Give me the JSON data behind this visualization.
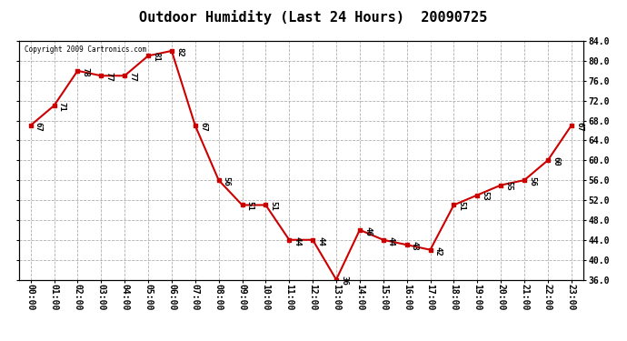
{
  "title": "Outdoor Humidity (Last 24 Hours)  20090725",
  "copyright": "Copyright 2009 Cartronics.com",
  "hours": [
    "00:00",
    "01:00",
    "02:00",
    "03:00",
    "04:00",
    "05:00",
    "06:00",
    "07:00",
    "08:00",
    "09:00",
    "10:00",
    "11:00",
    "12:00",
    "13:00",
    "14:00",
    "15:00",
    "16:00",
    "17:00",
    "18:00",
    "19:00",
    "20:00",
    "21:00",
    "22:00",
    "23:00"
  ],
  "values": [
    67,
    71,
    78,
    77,
    77,
    81,
    82,
    67,
    56,
    51,
    51,
    44,
    44,
    36,
    46,
    44,
    43,
    42,
    51,
    53,
    55,
    56,
    60,
    67
  ],
  "ylim": [
    36.0,
    84.0
  ],
  "yticks": [
    36.0,
    40.0,
    44.0,
    48.0,
    52.0,
    56.0,
    60.0,
    64.0,
    68.0,
    72.0,
    76.0,
    80.0,
    84.0
  ],
  "line_color": "#cc0000",
  "marker_color": "#cc0000",
  "background_color": "#ffffff",
  "grid_color": "#b0b0b0",
  "title_fontsize": 11,
  "tick_fontsize": 7,
  "annotation_fontsize": 6.5
}
